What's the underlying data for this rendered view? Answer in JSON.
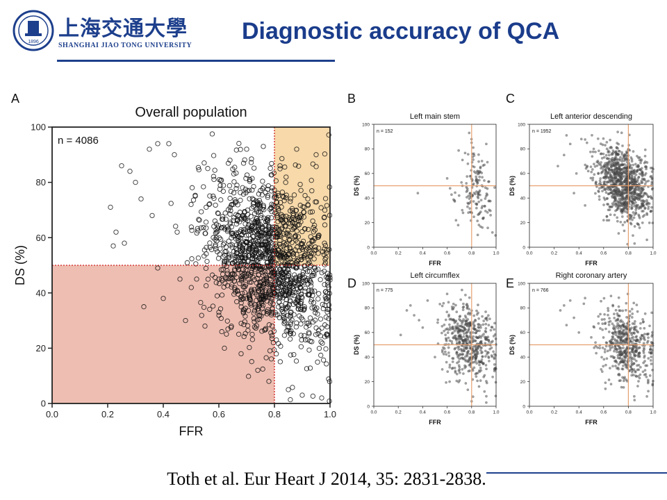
{
  "header": {
    "university_cn": "上海交通大學",
    "university_en": "SHANGHAI JIAO TONG UNIVERSITY",
    "logo_text": "1896",
    "title": "Diagnostic accuracy of QCA"
  },
  "citation": "Toth et al. Eur Heart J 2014, 35: 2831-2838.",
  "colors": {
    "title": "#1a3c8b",
    "brand": "#1d3f8c",
    "quadrant_red": "#e8a898",
    "quadrant_orange": "#f5cf95",
    "cutoff_line": "#d02020",
    "small_cutoff_line": "#e8a070",
    "point_small": "#555555"
  },
  "chart_data": [
    {
      "panel": "A",
      "type": "scatter",
      "title": "Overall population",
      "annotation": "n = 4086",
      "xlabel": "FFR",
      "ylabel": "DS (%)",
      "xlim": [
        0,
        1
      ],
      "ylim": [
        0,
        100
      ],
      "xticks": [
        "0.0",
        "0.2",
        "0.4",
        "0.6",
        "0.8",
        "1.0"
      ],
      "yticks": [
        "0",
        "20",
        "40",
        "60",
        "80",
        "100"
      ],
      "cutoffs": {
        "ffr": 0.8,
        "ds": 50
      },
      "shaded_regions": [
        "FFR ≤ 0.80 & DS < 50%",
        "FFR > 0.80 & DS ≥ 50%"
      ],
      "cluster": {
        "ffr_mean": 0.78,
        "ffr_sd": 0.11,
        "ds_mean": 52,
        "ds_sd": 15
      },
      "points": [
        [
          0.21,
          71
        ],
        [
          0.22,
          57
        ],
        [
          0.23,
          62
        ],
        [
          0.25,
          86
        ],
        [
          0.26,
          58
        ],
        [
          0.28,
          84
        ],
        [
          0.3,
          80
        ],
        [
          0.32,
          74
        ],
        [
          0.33,
          35
        ],
        [
          0.35,
          92
        ],
        [
          0.36,
          68
        ],
        [
          0.38,
          49
        ],
        [
          0.38,
          94
        ],
        [
          0.4,
          38
        ],
        [
          0.42,
          94
        ],
        [
          0.44,
          90
        ],
        [
          0.45,
          62
        ],
        [
          0.46,
          45
        ],
        [
          0.48,
          30
        ],
        [
          0.5,
          72
        ],
        [
          0.52,
          45
        ],
        [
          0.55,
          28
        ],
        [
          0.56,
          85
        ],
        [
          0.58,
          60
        ],
        [
          0.6,
          33
        ],
        [
          0.62,
          20
        ],
        [
          0.64,
          88
        ],
        [
          0.68,
          18
        ],
        [
          0.7,
          92
        ],
        [
          0.72,
          25
        ],
        [
          0.74,
          12
        ],
        [
          0.76,
          93
        ],
        [
          0.78,
          8
        ],
        [
          0.82,
          86
        ],
        [
          0.85,
          5
        ],
        [
          0.88,
          92
        ],
        [
          0.9,
          3
        ],
        [
          0.92,
          74
        ],
        [
          0.95,
          90
        ],
        [
          0.97,
          2
        ],
        [
          0.98,
          58
        ],
        [
          0.99,
          40
        ]
      ]
    },
    {
      "panel": "B",
      "type": "scatter",
      "title": "Left main stem",
      "annotation": "n = 152",
      "xlabel": "FFR",
      "ylabel": "DS (%)",
      "xlim": [
        0,
        1
      ],
      "ylim": [
        0,
        100
      ],
      "xticks": [
        "0.0",
        "0.2",
        "0.4",
        "0.6",
        "0.8",
        "1.0"
      ],
      "yticks": [
        "0",
        "20",
        "40",
        "60",
        "80",
        "100"
      ],
      "cutoffs": {
        "ffr": 0.8,
        "ds": 50
      },
      "cluster": {
        "ffr_mean": 0.84,
        "ffr_sd": 0.07,
        "ds_mean": 45,
        "ds_sd": 16
      },
      "points": [
        [
          0.36,
          44
        ],
        [
          0.6,
          56
        ],
        [
          0.66,
          38
        ],
        [
          0.69,
          18
        ],
        [
          0.78,
          93
        ],
        [
          0.8,
          85
        ],
        [
          0.92,
          84
        ],
        [
          0.85,
          10
        ],
        [
          0.97,
          12
        ],
        [
          0.73,
          28
        ]
      ]
    },
    {
      "panel": "C",
      "type": "scatter",
      "title": "Left anterior descending",
      "annotation": "n = 1952",
      "xlabel": "FFR",
      "ylabel": "DS (%)",
      "xlim": [
        0,
        1
      ],
      "ylim": [
        0,
        100
      ],
      "xticks": [
        "0.0",
        "0.2",
        "0.4",
        "0.6",
        "0.8",
        "1.0"
      ],
      "yticks": [
        "0",
        "20",
        "40",
        "60",
        "80",
        "100"
      ],
      "cutoffs": {
        "ffr": 0.8,
        "ds": 50
      },
      "cluster": {
        "ffr_mean": 0.76,
        "ffr_sd": 0.11,
        "ds_mean": 52,
        "ds_sd": 14
      },
      "points": [
        [
          0.23,
          66
        ],
        [
          0.28,
          75
        ],
        [
          0.3,
          91
        ],
        [
          0.33,
          84
        ],
        [
          0.36,
          44
        ],
        [
          0.38,
          60
        ],
        [
          0.42,
          88
        ],
        [
          0.45,
          34
        ],
        [
          0.52,
          80
        ],
        [
          0.6,
          22
        ],
        [
          0.85,
          3
        ],
        [
          0.95,
          6
        ]
      ]
    },
    {
      "panel": "D",
      "type": "scatter",
      "title": "Left circumflex",
      "annotation": "n = 775",
      "xlabel": "FFR",
      "ylabel": "DS (%)",
      "xlim": [
        0,
        1
      ],
      "ylim": [
        0,
        100
      ],
      "xticks": [
        "0.0",
        "0.2",
        "0.4",
        "0.6",
        "0.8",
        "1.0"
      ],
      "yticks": [
        "0",
        "20",
        "40",
        "60",
        "80",
        "100"
      ],
      "cutoffs": {
        "ffr": 0.8,
        "ds": 50
      },
      "cluster": {
        "ffr_mean": 0.78,
        "ffr_sd": 0.11,
        "ds_mean": 52,
        "ds_sd": 15
      },
      "points": [
        [
          0.22,
          58
        ],
        [
          0.27,
          78
        ],
        [
          0.3,
          82
        ],
        [
          0.33,
          74
        ],
        [
          0.37,
          70
        ],
        [
          0.4,
          64
        ],
        [
          0.44,
          86
        ],
        [
          0.5,
          40
        ],
        [
          0.56,
          30
        ],
        [
          0.62,
          20
        ],
        [
          0.8,
          4
        ],
        [
          0.92,
          3
        ]
      ]
    },
    {
      "panel": "E",
      "type": "scatter",
      "title": "Right coronary artery",
      "annotation": "n = 766",
      "xlabel": "FFR",
      "ylabel": "DS (%)",
      "xlim": [
        0,
        1
      ],
      "ylim": [
        0,
        100
      ],
      "xticks": [
        "0.0",
        "0.2",
        "0.4",
        "0.6",
        "0.8",
        "1.0"
      ],
      "yticks": [
        "0",
        "20",
        "40",
        "60",
        "80",
        "100"
      ],
      "cutoffs": {
        "ffr": 0.8,
        "ds": 50
      },
      "cluster": {
        "ffr_mean": 0.79,
        "ffr_sd": 0.11,
        "ds_mean": 50,
        "ds_sd": 15
      },
      "points": [
        [
          0.25,
          78
        ],
        [
          0.28,
          82
        ],
        [
          0.3,
          66
        ],
        [
          0.33,
          86
        ],
        [
          0.36,
          72
        ],
        [
          0.4,
          60
        ],
        [
          0.45,
          88
        ],
        [
          0.5,
          56
        ],
        [
          0.58,
          30
        ],
        [
          0.66,
          18
        ],
        [
          0.85,
          5
        ],
        [
          0.95,
          8
        ]
      ]
    }
  ]
}
